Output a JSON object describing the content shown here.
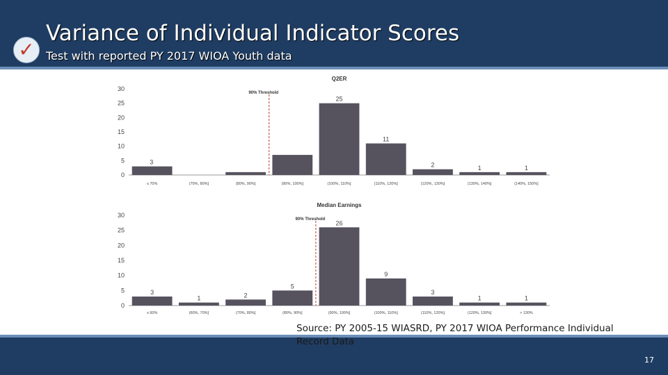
{
  "header": {
    "title": "Variance of Individual Indicator Scores",
    "subtitle": "Test with reported PY 2017 WIOA Youth data",
    "check_icon": "check-icon"
  },
  "footer": {
    "source": "Source: PY 2005-15 WIASRD, PY 2017 WIOA Performance Individual Record Data",
    "page_number": "17"
  },
  "colors": {
    "header_bg": "#1f3d63",
    "bar": "#56535f",
    "threshold": "#c0392b"
  },
  "chart_data": [
    {
      "type": "bar",
      "title": "Q2ER",
      "categories": [
        "≤ 70%",
        "(70%, 80%]",
        "(80%, 90%]",
        "(90%, 100%]",
        "(100%, 110%]",
        "(110%, 120%]",
        "(120%, 130%]",
        "(130%, 140%]",
        "(140%, 150%]"
      ],
      "values": [
        3,
        0,
        1,
        7,
        25,
        11,
        2,
        1,
        1
      ],
      "data_labels": [
        "3",
        "",
        "",
        "",
        "25",
        "11",
        "2",
        "1",
        "1"
      ],
      "ylim": [
        0,
        30
      ],
      "yticks": [
        0,
        5,
        10,
        15,
        20,
        25,
        30
      ],
      "threshold": {
        "label": "90% Threshold",
        "between": [
          2,
          3
        ]
      },
      "grid": false
    },
    {
      "type": "bar",
      "title": "Median Earnings",
      "categories": [
        "≤ 60%",
        "(60%, 70%]",
        "(70%, 80%]",
        "(80%, 90%]",
        "(90%, 100%]",
        "(100%, 110%]",
        "(110%, 120%]",
        "(120%, 130%]",
        "> 130%"
      ],
      "values": [
        3,
        1,
        2,
        5,
        26,
        9,
        3,
        1,
        1
      ],
      "data_labels": [
        "3",
        "1",
        "2",
        "5",
        "26",
        "9",
        "3",
        "1",
        "1"
      ],
      "ylim": [
        0,
        30
      ],
      "yticks": [
        0,
        5,
        10,
        15,
        20,
        25,
        30
      ],
      "threshold": {
        "label": "90% Threshold",
        "between": [
          3,
          4
        ]
      },
      "grid": false
    }
  ]
}
